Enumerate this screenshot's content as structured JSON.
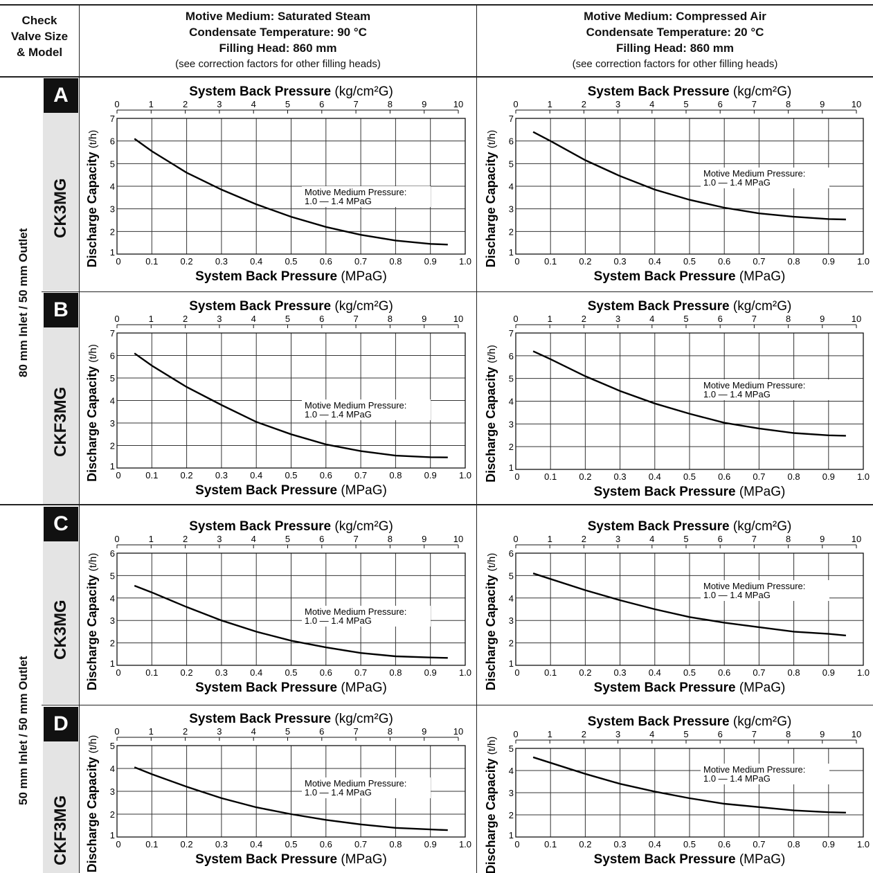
{
  "header": {
    "check_valve": [
      "Check",
      "Valve Size",
      "& Model"
    ],
    "left_col": {
      "lines": [
        "Motive Medium: Saturated Steam",
        "Condensate Temperature: 90 °C",
        "Filling Head: 860 mm"
      ],
      "note": "(see correction factors for other filling heads)"
    },
    "right_col": {
      "lines": [
        "Motive Medium: Compressed Air",
        "Condensate Temperature: 20 °C",
        "Filling Head: 860 mm"
      ],
      "note": "(see correction factors for other filling heads)"
    }
  },
  "groups": [
    "80 mm Inlet / 50 mm Outlet",
    "50 mm Inlet / 50 mm Outlet"
  ],
  "rows": [
    {
      "badge": "A",
      "model": "CK3MG"
    },
    {
      "badge": "B",
      "model": "CKF3MG"
    },
    {
      "badge": "C",
      "model": "CK3MG"
    },
    {
      "badge": "D",
      "model": "CKF3MG"
    }
  ],
  "chart_labels": {
    "top_axis_bold": "System Back Pressure",
    "top_axis_unit": "(kg/cm²G)",
    "bottom_axis_bold": "System Back Pressure",
    "bottom_axis_unit": "(MPaG)",
    "y_axis_bold": "Discharge Capacity",
    "y_axis_unit": "(t/h)",
    "annotation_line1": "Motive Medium Pressure:",
    "annotation_line2": "1.0 — 1.4 MPaG",
    "x_ticks": [
      "0",
      "0.1",
      "0.2",
      "0.3",
      "0.4",
      "0.5",
      "0.6",
      "0.7",
      "0.8",
      "0.9",
      "1.0"
    ],
    "top_ticks": [
      "0",
      "1",
      "2",
      "3",
      "4",
      "5",
      "6",
      "7",
      "8",
      "9",
      "10"
    ]
  },
  "chart_data": [
    {
      "id": "A-steam",
      "type": "line",
      "xlim": [
        0,
        1.0
      ],
      "ylim": [
        1,
        7
      ],
      "top_xlim": [
        0,
        10
      ],
      "x": [
        0.05,
        0.1,
        0.2,
        0.3,
        0.4,
        0.5,
        0.6,
        0.7,
        0.8,
        0.9,
        0.95
      ],
      "y": [
        6.1,
        5.55,
        4.6,
        3.85,
        3.2,
        2.65,
        2.2,
        1.85,
        1.6,
        1.45,
        1.42
      ]
    },
    {
      "id": "A-air",
      "type": "line",
      "xlim": [
        0,
        1.0
      ],
      "ylim": [
        1,
        7
      ],
      "top_xlim": [
        0,
        10
      ],
      "x": [
        0.05,
        0.1,
        0.2,
        0.3,
        0.4,
        0.5,
        0.6,
        0.7,
        0.8,
        0.9,
        0.95
      ],
      "y": [
        6.4,
        6.0,
        5.15,
        4.45,
        3.85,
        3.4,
        3.05,
        2.8,
        2.65,
        2.55,
        2.53
      ]
    },
    {
      "id": "B-steam",
      "type": "line",
      "xlim": [
        0,
        1.0
      ],
      "ylim": [
        1,
        7
      ],
      "top_xlim": [
        0,
        10
      ],
      "x": [
        0.05,
        0.1,
        0.2,
        0.3,
        0.4,
        0.5,
        0.6,
        0.7,
        0.8,
        0.9,
        0.95
      ],
      "y": [
        6.1,
        5.55,
        4.6,
        3.8,
        3.05,
        2.5,
        2.05,
        1.75,
        1.55,
        1.48,
        1.47
      ]
    },
    {
      "id": "B-air",
      "type": "line",
      "xlim": [
        0,
        1.0
      ],
      "ylim": [
        1,
        7
      ],
      "top_xlim": [
        0,
        10
      ],
      "x": [
        0.05,
        0.1,
        0.2,
        0.3,
        0.4,
        0.5,
        0.6,
        0.7,
        0.8,
        0.9,
        0.95
      ],
      "y": [
        6.2,
        5.85,
        5.1,
        4.45,
        3.9,
        3.45,
        3.05,
        2.8,
        2.6,
        2.5,
        2.48
      ]
    },
    {
      "id": "C-steam",
      "type": "line",
      "xlim": [
        0,
        1.0
      ],
      "ylim": [
        1,
        6
      ],
      "top_xlim": [
        0,
        10
      ],
      "x": [
        0.05,
        0.1,
        0.2,
        0.3,
        0.4,
        0.5,
        0.6,
        0.7,
        0.8,
        0.9,
        0.95
      ],
      "y": [
        4.55,
        4.25,
        3.6,
        3.0,
        2.5,
        2.1,
        1.8,
        1.55,
        1.4,
        1.35,
        1.33
      ]
    },
    {
      "id": "C-air",
      "type": "line",
      "xlim": [
        0,
        1.0
      ],
      "ylim": [
        1,
        6
      ],
      "top_xlim": [
        0,
        10
      ],
      "x": [
        0.05,
        0.1,
        0.2,
        0.3,
        0.4,
        0.5,
        0.6,
        0.7,
        0.8,
        0.9,
        0.95
      ],
      "y": [
        5.1,
        4.85,
        4.35,
        3.9,
        3.5,
        3.15,
        2.9,
        2.7,
        2.5,
        2.4,
        2.33
      ]
    },
    {
      "id": "D-steam",
      "type": "line",
      "xlim": [
        0,
        1.0
      ],
      "ylim": [
        1,
        5
      ],
      "top_xlim": [
        0,
        10
      ],
      "x": [
        0.05,
        0.1,
        0.2,
        0.3,
        0.4,
        0.5,
        0.6,
        0.7,
        0.8,
        0.9,
        0.95
      ],
      "y": [
        4.05,
        3.75,
        3.2,
        2.7,
        2.3,
        2.0,
        1.75,
        1.55,
        1.4,
        1.33,
        1.3
      ]
    },
    {
      "id": "D-air",
      "type": "line",
      "xlim": [
        0,
        1.0
      ],
      "ylim": [
        1,
        5
      ],
      "top_xlim": [
        0,
        10
      ],
      "x": [
        0.05,
        0.1,
        0.2,
        0.3,
        0.4,
        0.5,
        0.6,
        0.7,
        0.8,
        0.9,
        0.95
      ],
      "y": [
        4.6,
        4.35,
        3.85,
        3.4,
        3.05,
        2.75,
        2.5,
        2.35,
        2.2,
        2.12,
        2.1
      ]
    }
  ]
}
